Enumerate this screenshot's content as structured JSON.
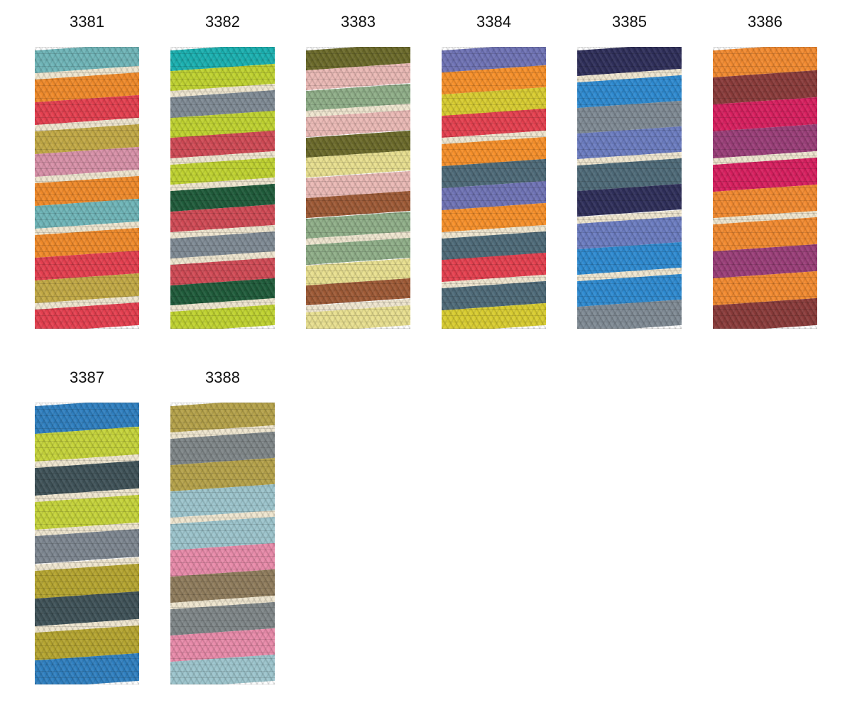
{
  "swatches": [
    {
      "label": "3381",
      "colors": [
        "#6fb5b8",
        "#efe6cf",
        "#f08a2a",
        "#e43f4f",
        "#efe6cf",
        "#c2a945",
        "#d891a8",
        "#efe6cf",
        "#f08a2a",
        "#6fb5b8",
        "#efe6cf",
        "#f08a2a",
        "#e43f4f",
        "#c2a945",
        "#efe6cf",
        "#e43f4f"
      ]
    },
    {
      "label": "3382",
      "colors": [
        "#1ab0b0",
        "#bfd230",
        "#efe6cf",
        "#7f8a94",
        "#bfd230",
        "#d04a55",
        "#efe6cf",
        "#bfd230",
        "#efe6cf",
        "#1f5b3a",
        "#d04a55",
        "#efe6cf",
        "#7f8a94",
        "#efe6cf",
        "#d04a55",
        "#1f5b3a",
        "#efe6cf",
        "#bfd230"
      ]
    },
    {
      "label": "3383",
      "colors": [
        "#6b6a2a",
        "#eab9b5",
        "#8fae88",
        "#efe6cf",
        "#eab9b5",
        "#6b6a2a",
        "#e8df8f",
        "#eab9b5",
        "#9e5a36",
        "#8fae88",
        "#efe6cf",
        "#8fae88",
        "#e8df8f",
        "#9e5a36",
        "#efe6cf",
        "#e8df8f"
      ]
    },
    {
      "label": "3384",
      "colors": [
        "#6f73b5",
        "#f7902a",
        "#d8cc30",
        "#e5404f",
        "#efe6cf",
        "#f7902a",
        "#4e6a78",
        "#6f73b5",
        "#f7902a",
        "#efe6cf",
        "#4e6a78",
        "#e5404f",
        "#efe6cf",
        "#4e6a78",
        "#d8cc30"
      ]
    },
    {
      "label": "3385",
      "colors": [
        "#2f2f5a",
        "#efe6cf",
        "#2e8ad0",
        "#7f8a94",
        "#6b7cc0",
        "#efe6cf",
        "#4e6a78",
        "#2f2f5a",
        "#efe6cf",
        "#6b7cc0",
        "#2e8ad0",
        "#efe6cf",
        "#2e8ad0",
        "#7f8a94"
      ]
    },
    {
      "label": "3386",
      "colors": [
        "#f28a30",
        "#8a3b3a",
        "#d81f5f",
        "#9a3e78",
        "#efe6cf",
        "#d81f5f",
        "#f28a30",
        "#efe6cf",
        "#f28a30",
        "#9a3e78",
        "#f28a30",
        "#8a3b3a"
      ]
    },
    {
      "label": "3387",
      "colors": [
        "#2f7fbf",
        "#c5d33a",
        "#efe6cf",
        "#3f5258",
        "#efe6cf",
        "#c5d33a",
        "#efe6cf",
        "#7d8690",
        "#efe6cf",
        "#b5a530",
        "#3f5258",
        "#efe6cf",
        "#b5a530",
        "#2f7fbf"
      ]
    },
    {
      "label": "3388",
      "colors": [
        "#b5a24a",
        "#efe6cf",
        "#7f8688",
        "#b5a24a",
        "#9cc4cc",
        "#efe6cf",
        "#9cc4cc",
        "#e88aa9",
        "#8f7c5c",
        "#efe6cf",
        "#7f8688",
        "#e88aa9",
        "#9cc4cc"
      ]
    }
  ]
}
